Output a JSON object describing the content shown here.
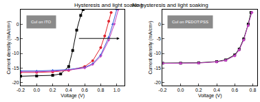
{
  "chart_data": [
    {
      "type": "line",
      "title": "Hysteresis and light soaking",
      "x_label": "Voltage (V)",
      "y_label": "Current density (mA/cm²)",
      "annotations": [
        "CuI on ITO"
      ],
      "xlim": [
        -0.2,
        1.1
      ],
      "ylim": [
        -21,
        5
      ],
      "xticks": [
        -0.2,
        {
          "value": 0,
          "label": "0.0"
        },
        0.2,
        0.4,
        0.6,
        0.8,
        {
          "value": 1,
          "label": "1.0"
        }
      ],
      "yticks": [
        -20,
        -15,
        -10,
        -5,
        0
      ],
      "series": [
        {
          "color": "#000000",
          "marker": "square",
          "x": [
            -0.2,
            0,
            0.2,
            0.3,
            0.4,
            0.45,
            0.5,
            0.55,
            0.58
          ],
          "values": [
            -17.8,
            -17.7,
            -17.5,
            -17,
            -14.5,
            -9,
            -2,
            3,
            5
          ]
        },
        {
          "color": "#e0202a",
          "marker": "circle",
          "x": [
            -0.2,
            0,
            0.2,
            0.4,
            0.6,
            0.7,
            0.8,
            0.85,
            0.9,
            0.93
          ],
          "values": [
            -16.5,
            -16.5,
            -16.3,
            -15.8,
            -14.5,
            -12.5,
            -8,
            -4,
            1,
            4
          ]
        },
        {
          "color": "#3a5bd9",
          "marker": "triangle-up",
          "x": [
            -0.2,
            0,
            0.2,
            0.4,
            0.6,
            0.7,
            0.8,
            0.9,
            0.95,
            1.0
          ],
          "values": [
            -16,
            -16,
            -15.8,
            -15.5,
            -14.8,
            -13.5,
            -10.5,
            -4.5,
            0,
            5
          ]
        },
        {
          "color": "#c040c0",
          "marker": "triangle-down",
          "x": [
            -0.2,
            0,
            0.2,
            0.4,
            0.6,
            0.7,
            0.8,
            0.9,
            0.97,
            1.02
          ],
          "values": [
            -16.3,
            -16.3,
            -16.1,
            -15.7,
            -15,
            -13.8,
            -11,
            -5.5,
            0,
            5
          ]
        }
      ]
    },
    {
      "type": "line",
      "title": "No hysteresis and light soaking",
      "x_label": "Voltage (V)",
      "y_label": "Current density (mA/cm²)",
      "annotations": [
        "CuI on PEDOT:PSS"
      ],
      "xlim": [
        -0.2,
        0.85
      ],
      "ylim": [
        -21,
        5
      ],
      "xticks": [
        -0.2,
        {
          "value": 0,
          "label": "0.0"
        },
        0.2,
        0.4,
        0.6,
        0.8
      ],
      "yticks": [
        -20,
        -15,
        -10,
        -5,
        0
      ],
      "series": [
        {
          "color": "#000000",
          "marker": "square",
          "x": [
            -0.2,
            0,
            0.2,
            0.4,
            0.5,
            0.6,
            0.65,
            0.7,
            0.75,
            0.78
          ],
          "values": [
            -13.3,
            -13.3,
            -13.2,
            -12.8,
            -12.2,
            -10.5,
            -8.5,
            -5,
            0,
            4
          ]
        },
        {
          "color": "#c040c0",
          "marker": "circle",
          "x": [
            -0.2,
            0,
            0.2,
            0.4,
            0.5,
            0.6,
            0.65,
            0.7,
            0.75,
            0.79
          ],
          "values": [
            -13.4,
            -13.4,
            -13.3,
            -12.9,
            -12.4,
            -10.8,
            -8.8,
            -5.4,
            -0.5,
            4
          ]
        }
      ]
    }
  ]
}
